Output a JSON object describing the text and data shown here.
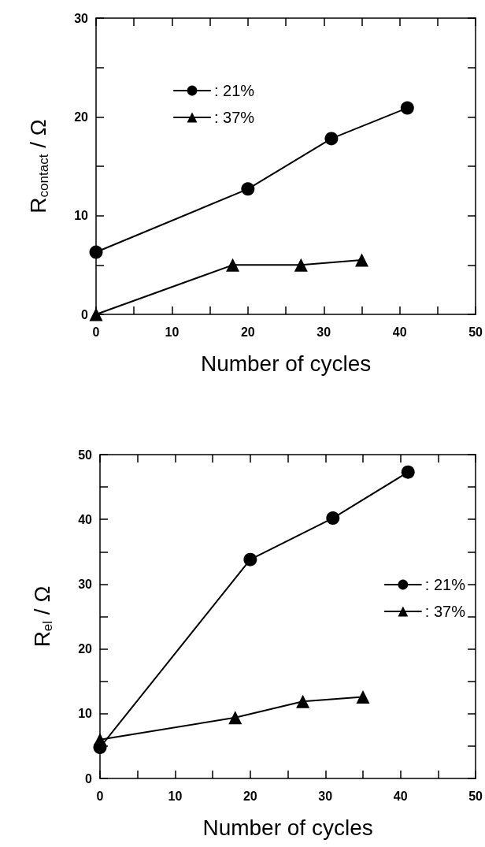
{
  "chart_data": [
    {
      "type": "line",
      "xlabel": "Number of cycles",
      "ylabel": "R$_{contact}$ / Ω",
      "xlim": [
        0,
        50
      ],
      "xticks": [
        0,
        10,
        20,
        30,
        40,
        50
      ],
      "ylim": [
        0,
        30
      ],
      "yticks": [
        0,
        10,
        20,
        30
      ],
      "legend": "top",
      "grid": false,
      "line_style": "solid",
      "series": [
        {
          "name": ": 21%",
          "color": "#000000",
          "marker": "circle",
          "x": [
            0,
            20,
            31,
            41
          ],
          "values": [
            6.3,
            12.7,
            17.8,
            20.9
          ]
        },
        {
          "name": ": 37%",
          "color": "#000000",
          "marker": "triangle",
          "x": [
            0,
            18,
            27,
            35
          ],
          "values": [
            0,
            5.0,
            5.0,
            5.5
          ]
        }
      ]
    },
    {
      "type": "line",
      "xlabel": "Number of cycles",
      "ylabel": "R$_{el}$ / Ω",
      "xlim": [
        0,
        50
      ],
      "xticks": [
        0,
        10,
        20,
        30,
        40,
        50
      ],
      "ylim": [
        0,
        50
      ],
      "yticks": [
        0,
        10,
        20,
        30,
        40,
        50
      ],
      "legend": "right",
      "grid": false,
      "line_style": "solid",
      "series": [
        {
          "name": ": 21%",
          "color": "#000000",
          "marker": "circle",
          "x": [
            0,
            20,
            31,
            41
          ],
          "values": [
            4.8,
            33.8,
            40.2,
            47.3
          ]
        },
        {
          "name": ": 37%",
          "color": "#000000",
          "marker": "triangle",
          "x": [
            0,
            18,
            27,
            35
          ],
          "values": [
            6.0,
            9.4,
            11.9,
            12.6
          ]
        }
      ]
    }
  ]
}
